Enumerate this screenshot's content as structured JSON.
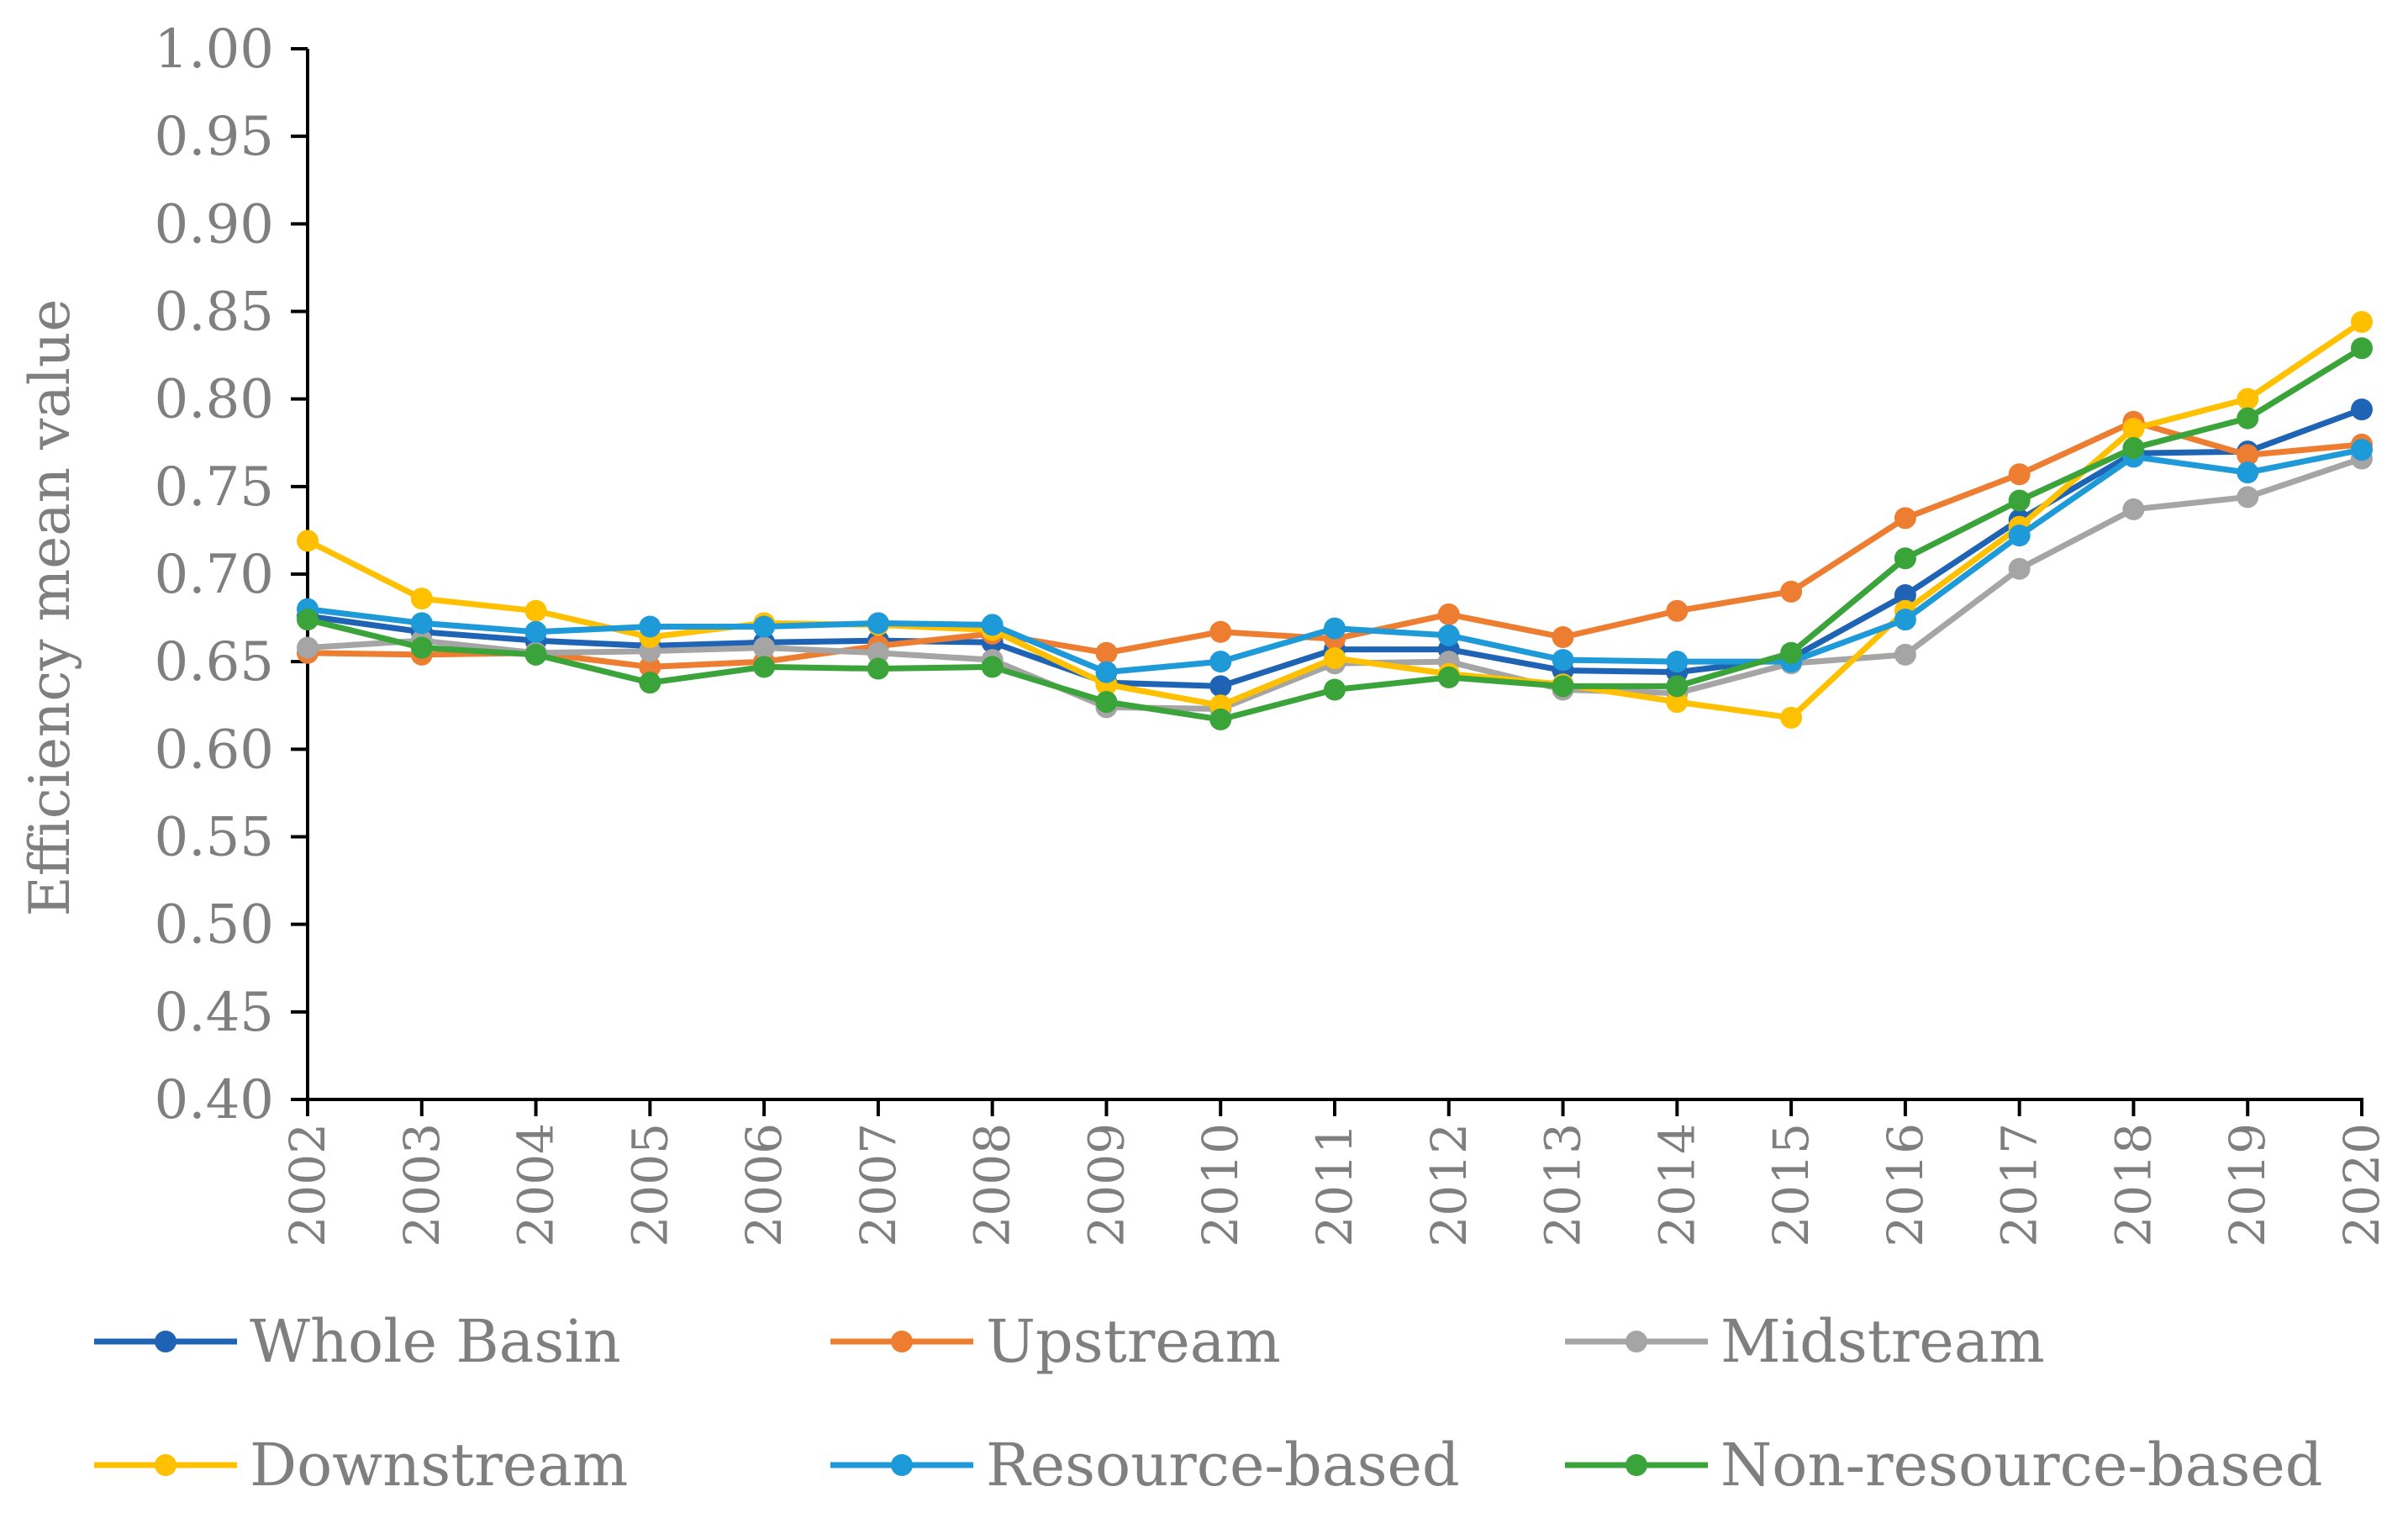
{
  "chart_data": {
    "type": "line",
    "title": "",
    "xlabel": "",
    "ylabel": "Efficiency mean value",
    "ylim": [
      0.4,
      1.0
    ],
    "yticks": [
      "0.40",
      "0.45",
      "0.50",
      "0.55",
      "0.60",
      "0.65",
      "0.70",
      "0.75",
      "0.80",
      "0.85",
      "0.90",
      "0.95",
      "1.00"
    ],
    "categories": [
      "2002",
      "2003",
      "2004",
      "2005",
      "2006",
      "2007",
      "2008",
      "2009",
      "2010",
      "2011",
      "2012",
      "2013",
      "2014",
      "2015",
      "2016",
      "2017",
      "2018",
      "2019",
      "2020"
    ],
    "legend_position": "bottom",
    "grid": false,
    "series": [
      {
        "name": "Whole Basin",
        "color": "#1f64b4",
        "values": [
          0.676,
          0.667,
          0.662,
          0.659,
          0.661,
          0.662,
          0.661,
          0.638,
          0.636,
          0.657,
          0.657,
          0.645,
          0.644,
          0.652,
          0.688,
          0.731,
          0.769,
          0.77,
          0.794
        ]
      },
      {
        "name": "Upstream",
        "color": "#ed7d31",
        "values": [
          0.655,
          0.654,
          0.655,
          0.647,
          0.65,
          0.659,
          0.666,
          0.655,
          0.667,
          0.663,
          0.677,
          0.664,
          0.679,
          0.69,
          0.732,
          0.757,
          0.787,
          0.768,
          0.774
        ]
      },
      {
        "name": "Midstream",
        "color": "#a5a5a5",
        "values": [
          0.658,
          0.662,
          0.655,
          0.656,
          0.658,
          0.655,
          0.651,
          0.624,
          0.623,
          0.649,
          0.65,
          0.634,
          0.632,
          0.649,
          0.654,
          0.703,
          0.737,
          0.744,
          0.766
        ]
      },
      {
        "name": "Downstream",
        "color": "#ffc000",
        "values": [
          0.719,
          0.686,
          0.679,
          0.664,
          0.672,
          0.671,
          0.668,
          0.637,
          0.625,
          0.652,
          0.643,
          0.637,
          0.627,
          0.618,
          0.679,
          0.727,
          0.783,
          0.8,
          0.844
        ]
      },
      {
        "name": "Resource-based",
        "color": "#1f9ad8",
        "values": [
          0.68,
          0.672,
          0.667,
          0.67,
          0.67,
          0.672,
          0.671,
          0.644,
          0.65,
          0.669,
          0.665,
          0.651,
          0.65,
          0.65,
          0.674,
          0.722,
          0.767,
          0.758,
          0.771
        ]
      },
      {
        "name": "Non-resource-based",
        "color": "#3aa33a",
        "values": [
          0.674,
          0.658,
          0.654,
          0.638,
          0.647,
          0.646,
          0.647,
          0.627,
          0.617,
          0.634,
          0.641,
          0.636,
          0.636,
          0.655,
          0.709,
          0.742,
          0.772,
          0.789,
          0.829
        ]
      }
    ]
  }
}
